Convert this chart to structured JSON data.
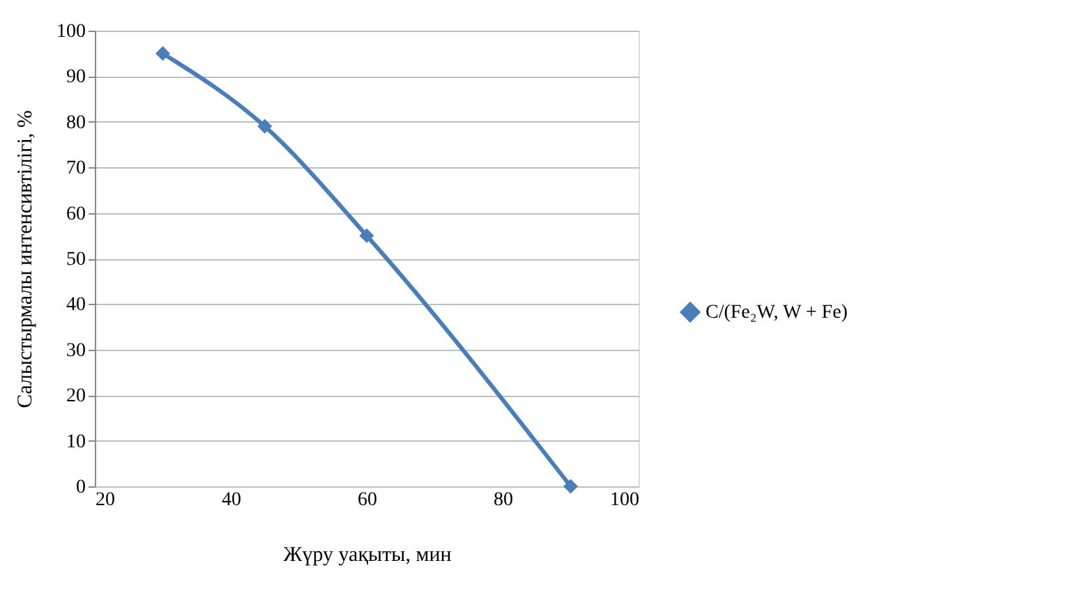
{
  "chart_data": {
    "type": "line",
    "xlabel": "Жүру уақыты, мин",
    "ylabel": "Салыстырмалы интенсивтілігі, %",
    "x": [
      30,
      45,
      60,
      90
    ],
    "series": [
      {
        "name": "C/(Fe₂W, W + Fe)",
        "color": "#4a7ebb",
        "values": [
          95,
          79,
          55,
          0
        ]
      }
    ],
    "xlim": [
      20,
      100
    ],
    "xticks": [
      20,
      40,
      60,
      80,
      100
    ],
    "ylim": [
      0,
      100
    ],
    "yticks": [
      0,
      10,
      20,
      30,
      40,
      50,
      60,
      70,
      80,
      90,
      100
    ],
    "grid": "y",
    "legend": "right",
    "marker": "diamond",
    "line_style": "solid"
  }
}
